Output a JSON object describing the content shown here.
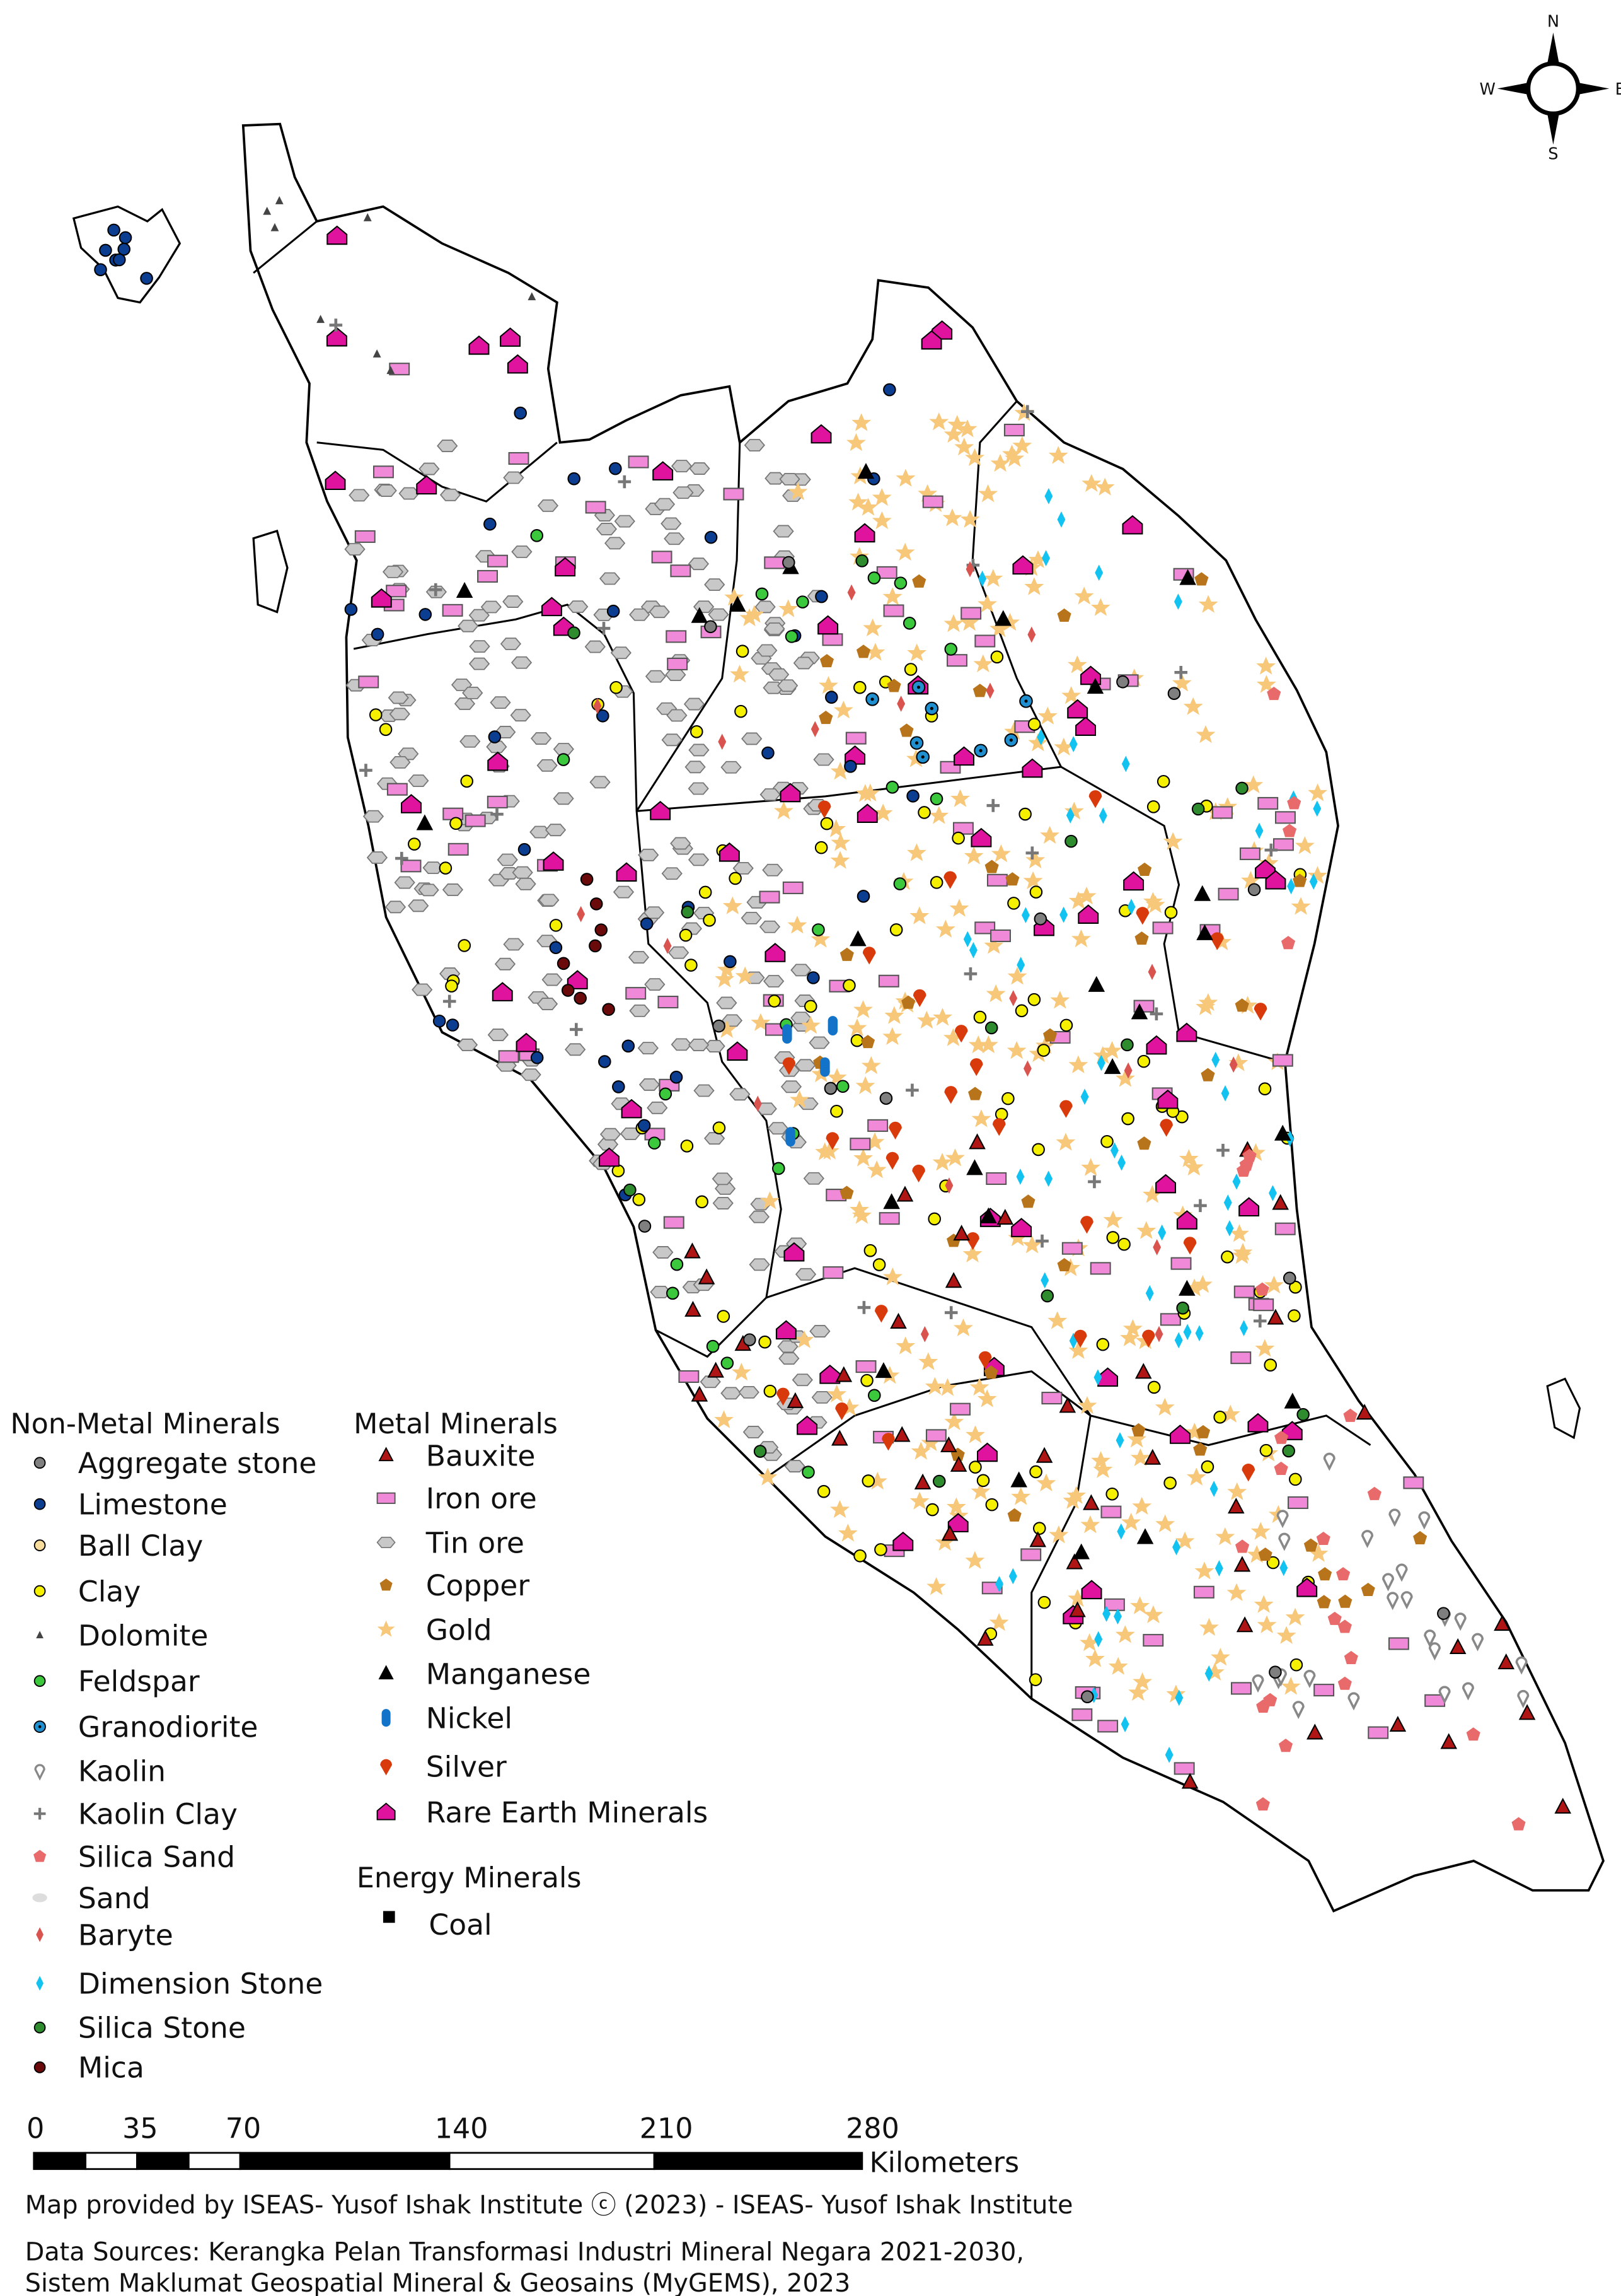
{
  "compass": {
    "n": "N",
    "s": "S",
    "e": "E",
    "w": "W"
  },
  "legend": {
    "non_metal": {
      "title": "Non-Metal Minerals",
      "items": [
        {
          "label": "Aggregate stone",
          "icon": "circle",
          "color": "#7f7f7f"
        },
        {
          "label": "Limestone",
          "icon": "circle",
          "color": "#0b3d91"
        },
        {
          "label": "Ball Clay",
          "icon": "circle",
          "color": "#f7dc9c"
        },
        {
          "label": "Clay",
          "icon": "circle",
          "color": "#f5f000"
        },
        {
          "label": "Dolomite",
          "icon": "small-triangle",
          "color": "#444444"
        },
        {
          "label": "Feldspar",
          "icon": "circle",
          "color": "#3cc83c"
        },
        {
          "label": "Granodiorite",
          "icon": "dotted-circle",
          "color": "#1f8fd0"
        },
        {
          "label": "Kaolin",
          "icon": "pin",
          "color": "#888888"
        },
        {
          "label": "Kaolin Clay",
          "icon": "plus",
          "color": "#777777"
        },
        {
          "label": "Silica Sand",
          "icon": "pentagon",
          "color": "#e86a6a"
        },
        {
          "label": "Sand",
          "icon": "ellipse",
          "color": "#dddddd"
        },
        {
          "label": "Baryte",
          "icon": "diamond",
          "color": "#d9534f"
        },
        {
          "label": "Dimension Stone",
          "icon": "diamond",
          "color": "#12c2f0"
        },
        {
          "label": "Silica Stone",
          "icon": "circle",
          "color": "#2e8b2e"
        },
        {
          "label": "Mica",
          "icon": "circle",
          "color": "#6b0a0a"
        }
      ]
    },
    "metal": {
      "title": "Metal Minerals",
      "items": [
        {
          "label": "Bauxite",
          "icon": "triangle",
          "color": "#b01515"
        },
        {
          "label": "Iron ore",
          "icon": "rectangle",
          "color": "#f08ad8"
        },
        {
          "label": "Tin ore",
          "icon": "hexagon",
          "color": "#c8c8c8"
        },
        {
          "label": "Copper",
          "icon": "pentagon",
          "color": "#b8741a"
        },
        {
          "label": "Gold",
          "icon": "star",
          "color": "#f7c77a"
        },
        {
          "label": "Manganese",
          "icon": "triangle",
          "color": "#000000"
        },
        {
          "label": "Nickel",
          "icon": "capsule",
          "color": "#1273c8"
        },
        {
          "label": "Silver",
          "icon": "drop",
          "color": "#d83a0c"
        },
        {
          "label": "Rare Earth Minerals",
          "icon": "house",
          "color": "#e0139f"
        }
      ]
    },
    "energy": {
      "title": "Energy Minerals",
      "items": [
        {
          "label": "Coal",
          "icon": "square",
          "color": "#000000"
        }
      ]
    }
  },
  "scale_bar": {
    "ticks": [
      "0",
      "35",
      "70",
      "140",
      "210",
      "280"
    ],
    "unit": "Kilometers"
  },
  "credits": {
    "provided_by": "Map provided by ISEAS- Yusof Ishak Institute ⓒ (2023) - ISEAS- Yusof Ishak Institute",
    "sources_line1": "Data Sources: Kerangka Pelan Transformasi Industri Mineral Negara 2021-2030,",
    "sources_line2": "Sistem Maklumat Geospatial Mineral & Geosains (MyGEMS), 2023"
  }
}
